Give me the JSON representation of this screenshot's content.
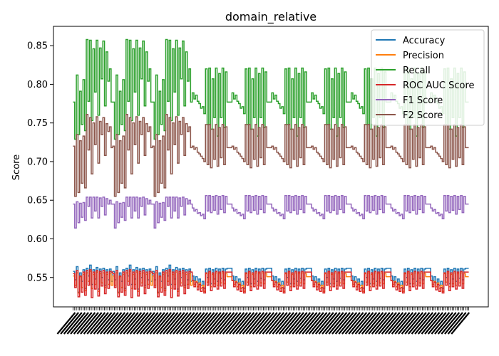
{
  "chart_data": {
    "type": "line",
    "title": "domain_relative",
    "xlabel": "",
    "ylabel": "Score",
    "ylim": [
      0.512,
      0.875
    ],
    "yticks": [
      0.55,
      0.6,
      0.65,
      0.7,
      0.75,
      0.8,
      0.85
    ],
    "ytick_labels": [
      "0.55",
      "0.60",
      "0.65",
      "0.70",
      "0.75",
      "0.80",
      "0.85"
    ],
    "n_points": 240,
    "legend_position": "upper right",
    "series": [
      {
        "name": "Accuracy",
        "color": "#1f77b4",
        "group_pattern_a": [
          0.558,
          0.547,
          0.564,
          0.531,
          0.556,
          0.545,
          0.56,
          0.536,
          0.562,
          0.552,
          0.566,
          0.541,
          0.56,
          0.548,
          0.563,
          0.535,
          0.561,
          0.55,
          0.562,
          0.54,
          0.56,
          0.547,
          0.561,
          0.545
        ],
        "group_pattern_b": [
          0.552,
          0.546,
          0.551,
          0.543,
          0.548,
          0.54,
          0.545,
          0.536,
          0.561,
          0.55,
          0.562,
          0.542,
          0.56,
          0.548,
          0.562,
          0.545,
          0.561,
          0.549,
          0.562,
          0.547,
          0.561,
          0.562,
          0.562,
          0.562
        ],
        "baseline": 0.562
      },
      {
        "name": "Precision",
        "color": "#ff7f0e",
        "group_pattern_a": [
          0.552,
          0.54,
          0.556,
          0.53,
          0.551,
          0.537,
          0.554,
          0.533,
          0.556,
          0.545,
          0.558,
          0.536,
          0.554,
          0.541,
          0.557,
          0.532,
          0.555,
          0.543,
          0.556,
          0.537,
          0.554,
          0.541,
          0.555,
          0.54
        ],
        "group_pattern_b": [
          0.546,
          0.541,
          0.545,
          0.538,
          0.543,
          0.536,
          0.54,
          0.532,
          0.555,
          0.544,
          0.556,
          0.538,
          0.554,
          0.542,
          0.556,
          0.54,
          0.555,
          0.543,
          0.556,
          0.542,
          0.555,
          0.551,
          0.551,
          0.551
        ],
        "baseline": 0.551
      },
      {
        "name": "Recall",
        "color": "#2ca02c",
        "group_pattern_a": [
          0.777,
          0.729,
          0.812,
          0.735,
          0.791,
          0.748,
          0.806,
          0.74,
          0.858,
          0.778,
          0.857,
          0.753,
          0.846,
          0.79,
          0.857,
          0.76,
          0.847,
          0.807,
          0.856,
          0.772,
          0.842,
          0.804,
          0.82,
          0.777
        ],
        "group_pattern_b": [
          0.789,
          0.781,
          0.786,
          0.778,
          0.775,
          0.769,
          0.771,
          0.762,
          0.82,
          0.748,
          0.821,
          0.742,
          0.807,
          0.757,
          0.821,
          0.733,
          0.814,
          0.757,
          0.821,
          0.744,
          0.816,
          0.777,
          0.777,
          0.777
        ],
        "baseline": 0.777
      },
      {
        "name": "ROC AUC Score",
        "color": "#d62728",
        "group_pattern_a": [
          0.555,
          0.537,
          0.559,
          0.525,
          0.552,
          0.531,
          0.557,
          0.527,
          0.559,
          0.54,
          0.56,
          0.524,
          0.557,
          0.535,
          0.559,
          0.526,
          0.558,
          0.539,
          0.559,
          0.529,
          0.557,
          0.536,
          0.558,
          0.557
        ],
        "group_pattern_b": [
          0.546,
          0.538,
          0.544,
          0.534,
          0.541,
          0.532,
          0.537,
          0.53,
          0.556,
          0.54,
          0.558,
          0.533,
          0.556,
          0.538,
          0.558,
          0.535,
          0.557,
          0.539,
          0.558,
          0.536,
          0.557,
          0.557,
          0.557,
          0.557
        ],
        "baseline": 0.557
      },
      {
        "name": "F1 Score",
        "color": "#9467bd",
        "group_pattern_a": [
          0.645,
          0.614,
          0.648,
          0.621,
          0.646,
          0.628,
          0.647,
          0.624,
          0.654,
          0.642,
          0.654,
          0.627,
          0.654,
          0.636,
          0.654,
          0.627,
          0.653,
          0.642,
          0.654,
          0.631,
          0.652,
          0.645,
          0.65,
          0.645
        ],
        "group_pattern_b": [
          0.64,
          0.636,
          0.638,
          0.633,
          0.634,
          0.63,
          0.632,
          0.626,
          0.656,
          0.636,
          0.656,
          0.634,
          0.655,
          0.637,
          0.656,
          0.632,
          0.655,
          0.638,
          0.656,
          0.634,
          0.655,
          0.645,
          0.645,
          0.645
        ],
        "baseline": 0.645
      },
      {
        "name": "F2 Score",
        "color": "#8c564b",
        "group_pattern_a": [
          0.72,
          0.655,
          0.735,
          0.66,
          0.727,
          0.672,
          0.733,
          0.666,
          0.761,
          0.715,
          0.757,
          0.684,
          0.75,
          0.722,
          0.758,
          0.698,
          0.752,
          0.735,
          0.757,
          0.708,
          0.749,
          0.739,
          0.745,
          0.718
        ],
        "group_pattern_b": [
          0.72,
          0.716,
          0.718,
          0.712,
          0.71,
          0.707,
          0.704,
          0.7,
          0.748,
          0.696,
          0.748,
          0.692,
          0.742,
          0.703,
          0.748,
          0.694,
          0.744,
          0.705,
          0.748,
          0.696,
          0.745,
          0.718,
          0.718,
          0.718
        ],
        "baseline": 0.718
      }
    ]
  }
}
